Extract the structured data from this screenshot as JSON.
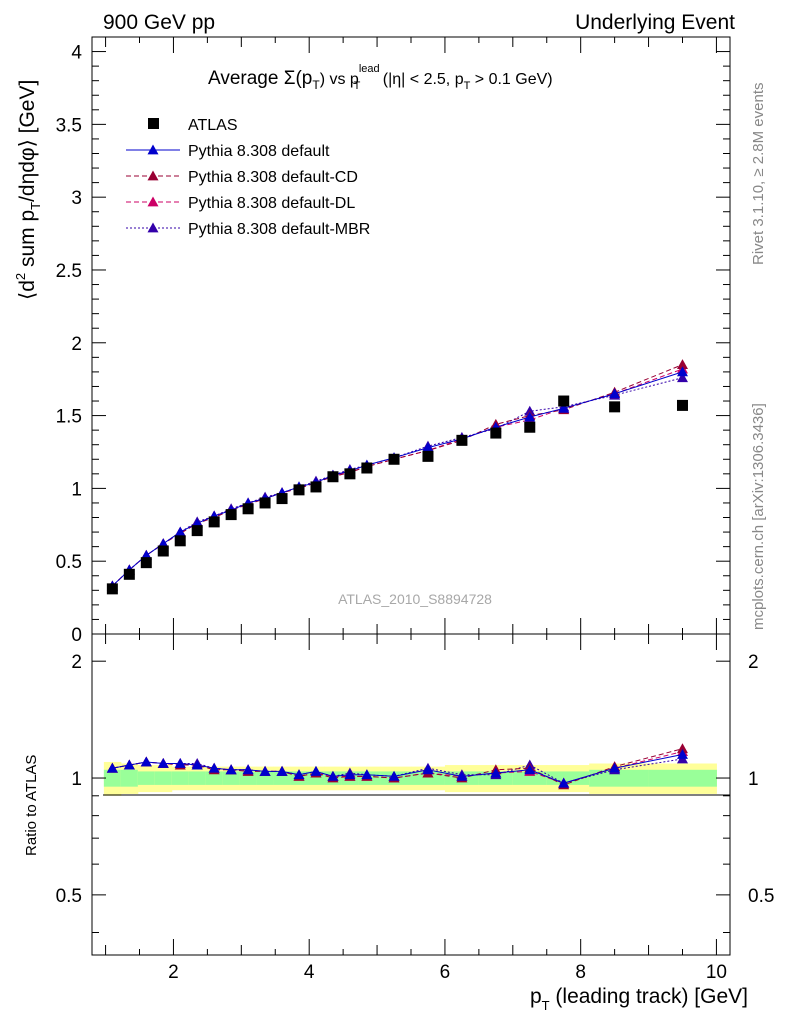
{
  "header": {
    "left": "900 GeV pp",
    "right": "Underlying Event"
  },
  "side_text": {
    "rivet": "Rivet 3.1.10, ≥ 2.8M events",
    "mcplots": "mcplots.cern.ch [arXiv:1306.3436]"
  },
  "analysis_id": "ATLAS_2010_S8894728",
  "colors": {
    "atlas": "#000000",
    "default": "#0000cc",
    "cd": "#990033",
    "dl": "#cc0066",
    "mbr": "#3300aa",
    "band_outer": "#ffff99",
    "band_inner": "#99ff99"
  },
  "chart_data": [
    {
      "type": "scatter",
      "title_parts": {
        "main": "Average Σ(p",
        "sub_T": "T",
        "vs": ") vs p",
        "sup": "lead",
        "sub2": "T",
        "tail": " (|η| < 2.5, p",
        "sub3": "T",
        "end": " > 0.1 GeV)"
      },
      "ylabel": "⟨d² sum p_T/dηdφ⟩ [GeV]",
      "ylabel_parts": {
        "a": "⟨d",
        "sup": "2",
        "b": " sum p",
        "sub": "T",
        "c": "/dηdφ⟩ [GeV]"
      },
      "xlim": [
        0.8,
        10.2
      ],
      "ylim": [
        0,
        4.1
      ],
      "yticks": [
        "0",
        "0.5",
        "1",
        "1.5",
        "2",
        "2.5",
        "3",
        "3.5",
        "4"
      ],
      "x": [
        1.1,
        1.35,
        1.6,
        1.85,
        2.1,
        2.35,
        2.6,
        2.85,
        3.1,
        3.35,
        3.6,
        3.85,
        4.1,
        4.35,
        4.6,
        4.85,
        5.25,
        5.75,
        6.25,
        6.75,
        7.25,
        7.75,
        8.5,
        9.5
      ],
      "series": [
        {
          "name": "ATLAS",
          "key": "atlas",
          "marker": "square",
          "line": "none",
          "values": [
            0.31,
            0.41,
            0.49,
            0.57,
            0.64,
            0.71,
            0.77,
            0.82,
            0.86,
            0.9,
            0.93,
            0.99,
            1.01,
            1.08,
            1.1,
            1.14,
            1.2,
            1.22,
            1.33,
            1.38,
            1.42,
            1.6,
            1.56,
            1.57
          ]
        },
        {
          "name": "Pythia 8.308 default",
          "key": "default",
          "marker": "triangle",
          "line": "solid",
          "values": [
            0.33,
            0.44,
            0.54,
            0.62,
            0.7,
            0.76,
            0.81,
            0.85,
            0.9,
            0.93,
            0.97,
            1.01,
            1.04,
            1.09,
            1.12,
            1.16,
            1.21,
            1.28,
            1.34,
            1.42,
            1.49,
            1.55,
            1.65,
            1.8
          ]
        },
        {
          "name": "Pythia 8.308 default-CD",
          "key": "cd",
          "marker": "triangle",
          "line": "dashed",
          "values": [
            0.33,
            0.44,
            0.54,
            0.62,
            0.69,
            0.76,
            0.8,
            0.85,
            0.89,
            0.93,
            0.97,
            1.0,
            1.04,
            1.08,
            1.11,
            1.15,
            1.2,
            1.26,
            1.33,
            1.44,
            1.5,
            1.54,
            1.66,
            1.85
          ]
        },
        {
          "name": "Pythia 8.308 default-DL",
          "key": "dl",
          "marker": "triangle",
          "line": "dashed",
          "values": [
            0.33,
            0.44,
            0.54,
            0.62,
            0.7,
            0.76,
            0.81,
            0.85,
            0.9,
            0.93,
            0.97,
            1.0,
            1.04,
            1.09,
            1.11,
            1.15,
            1.2,
            1.26,
            1.34,
            1.42,
            1.47,
            1.55,
            1.65,
            1.82
          ]
        },
        {
          "name": "Pythia 8.308 default-MBR",
          "key": "mbr",
          "marker": "triangle",
          "line": "dotted",
          "values": [
            0.33,
            0.44,
            0.54,
            0.62,
            0.7,
            0.77,
            0.81,
            0.86,
            0.9,
            0.94,
            0.97,
            1.01,
            1.05,
            1.09,
            1.13,
            1.16,
            1.21,
            1.29,
            1.35,
            1.41,
            1.53,
            1.56,
            1.64,
            1.76
          ]
        }
      ],
      "legend_position": "top-left"
    },
    {
      "type": "scatter",
      "ylabel": "Ratio to ATLAS",
      "xlabel": "p_T (leading track) [GeV]",
      "xlabel_parts": {
        "a": "p",
        "sub": "T",
        "b": " (leading track) [GeV]"
      },
      "xlim": [
        0.8,
        10.2
      ],
      "ylim": [
        0.35,
        2.35
      ],
      "xticks": [
        "2",
        "4",
        "6",
        "8",
        "10"
      ],
      "yticks_left": [
        "0.5",
        "1",
        "2"
      ],
      "yticks_right": [
        "0.5",
        "1",
        "2"
      ],
      "band_outer": [
        0.1,
        0.09,
        0.08,
        0.08,
        0.07,
        0.07,
        0.07,
        0.07,
        0.07,
        0.07,
        0.07,
        0.07,
        0.07,
        0.07,
        0.07,
        0.07,
        0.07,
        0.07,
        0.08,
        0.08,
        0.08,
        0.08,
        0.09,
        0.09
      ],
      "band_inner": [
        0.05,
        0.05,
        0.04,
        0.04,
        0.04,
        0.04,
        0.04,
        0.04,
        0.04,
        0.04,
        0.04,
        0.04,
        0.04,
        0.04,
        0.04,
        0.04,
        0.04,
        0.04,
        0.04,
        0.04,
        0.04,
        0.04,
        0.05,
        0.05
      ],
      "series": [
        {
          "name": "Pythia 8.308 default",
          "key": "default",
          "values": [
            1.06,
            1.08,
            1.1,
            1.09,
            1.09,
            1.08,
            1.06,
            1.05,
            1.05,
            1.04,
            1.04,
            1.02,
            1.04,
            1.01,
            1.02,
            1.02,
            1.01,
            1.05,
            1.01,
            1.03,
            1.05,
            0.97,
            1.06,
            1.15
          ]
        },
        {
          "name": "Pythia 8.308 default-CD",
          "key": "cd",
          "values": [
            1.06,
            1.08,
            1.1,
            1.09,
            1.08,
            1.08,
            1.05,
            1.05,
            1.04,
            1.04,
            1.04,
            1.01,
            1.03,
            1.0,
            1.01,
            1.01,
            1.0,
            1.03,
            1.0,
            1.05,
            1.06,
            0.96,
            1.07,
            1.19
          ]
        },
        {
          "name": "Pythia 8.308 default-DL",
          "key": "dl",
          "values": [
            1.06,
            1.08,
            1.1,
            1.09,
            1.09,
            1.08,
            1.06,
            1.05,
            1.05,
            1.04,
            1.04,
            1.01,
            1.03,
            1.01,
            1.01,
            1.01,
            1.0,
            1.03,
            1.01,
            1.03,
            1.04,
            0.97,
            1.06,
            1.17
          ]
        },
        {
          "name": "Pythia 8.308 default-MBR",
          "key": "mbr",
          "values": [
            1.06,
            1.08,
            1.1,
            1.09,
            1.09,
            1.09,
            1.06,
            1.05,
            1.05,
            1.04,
            1.04,
            1.02,
            1.04,
            1.01,
            1.03,
            1.02,
            1.01,
            1.06,
            1.02,
            1.02,
            1.08,
            0.97,
            1.05,
            1.12
          ]
        }
      ]
    }
  ]
}
